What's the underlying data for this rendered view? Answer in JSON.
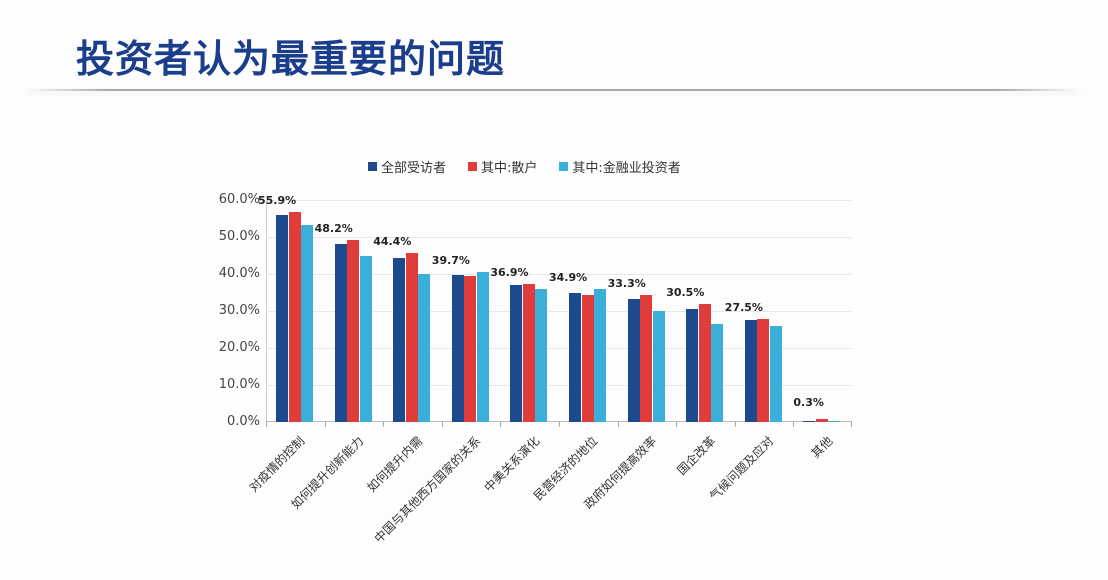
{
  "page": {
    "title": "投资者认为最重要的问题"
  },
  "legend": [
    {
      "label": "全部受访者",
      "color": "#1c4a8f"
    },
    {
      "label": "其中:散户",
      "color": "#e03c3a"
    },
    {
      "label": "其中:金融业投资者",
      "color": "#3aafd9"
    }
  ],
  "yaxis": {
    "ticks": [
      "60.0%",
      "50.0%",
      "40.0%",
      "30.0%",
      "20.0%",
      "10.0%",
      "0.0%"
    ]
  },
  "chart_data": {
    "type": "bar",
    "title": "投资者认为最重要的问题",
    "xlabel": "",
    "ylabel": "",
    "ylim": [
      0,
      60
    ],
    "grid": true,
    "legend_position": "top",
    "categories": [
      "对疫情的控制",
      "如何提升创新能力",
      "如何提升内需",
      "中国与其他西方国家的关系",
      "中美关系演化",
      "民营经济的地位",
      "政府如何提高效率",
      "国企改革",
      "气候问题及应对",
      "其他"
    ],
    "series": [
      {
        "name": "全部受访者",
        "color": "#1c4a8f",
        "values": [
          55.9,
          48.2,
          44.4,
          39.7,
          36.9,
          34.9,
          33.3,
          30.5,
          27.5,
          0.3
        ]
      },
      {
        "name": "其中:散户",
        "color": "#e03c3a",
        "values": [
          56.7,
          49.2,
          45.8,
          39.4,
          37.4,
          34.4,
          34.4,
          31.8,
          27.9,
          0.8
        ]
      },
      {
        "name": "其中:金融业投资者",
        "color": "#3aafd9",
        "values": [
          53.3,
          45.0,
          40.0,
          40.5,
          36.0,
          36.0,
          30.0,
          26.6,
          26.0,
          0.1
        ]
      }
    ],
    "data_labels": [
      "55.9%",
      "48.2%",
      "44.4%",
      "39.7%",
      "36.9%",
      "34.9%",
      "33.3%",
      "30.5%",
      "27.5%",
      "0.3%"
    ],
    "ytick_labels": [
      "0.0%",
      "10.0%",
      "20.0%",
      "30.0%",
      "40.0%",
      "50.0%",
      "60.0%"
    ]
  }
}
